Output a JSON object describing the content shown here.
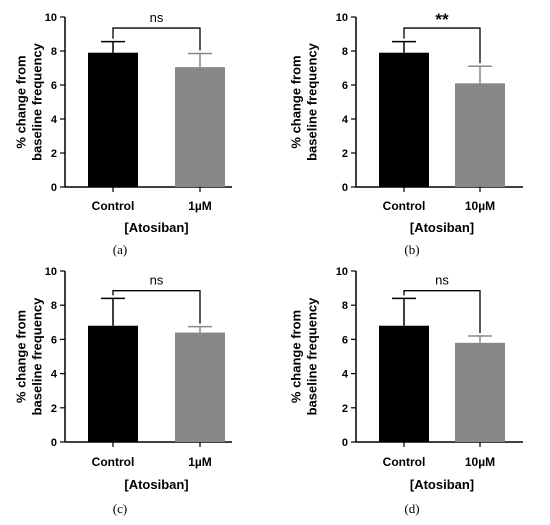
{
  "chart_data": [
    {
      "type": "bar",
      "panel": "(a)",
      "categories": [
        "Control",
        "1µM"
      ],
      "values": [
        7.9,
        7.05
      ],
      "errors": [
        0.65,
        0.8
      ],
      "colors": [
        "#000000",
        "#888888"
      ],
      "ylabel_lines": [
        "% change from",
        "baseline frequency"
      ],
      "xlabel": "[Atosiban]",
      "ylim": [
        0,
        10
      ],
      "yticks": [
        0,
        2,
        4,
        6,
        8,
        10
      ],
      "significance": "ns",
      "bracket_y": 9.35
    },
    {
      "type": "bar",
      "panel": "(b)",
      "categories": [
        "Control",
        "10µM"
      ],
      "values": [
        7.9,
        6.1
      ],
      "errors": [
        0.65,
        1.0
      ],
      "colors": [
        "#000000",
        "#888888"
      ],
      "ylabel_lines": [
        "% change from",
        "baseline frequency"
      ],
      "xlabel": "[Atosiban]",
      "ylim": [
        0,
        10
      ],
      "yticks": [
        0,
        2,
        4,
        6,
        8,
        10
      ],
      "significance": "**",
      "bracket_y": 9.35
    },
    {
      "type": "bar",
      "panel": "(c)",
      "categories": [
        "Control",
        "1µM"
      ],
      "values": [
        6.8,
        6.4
      ],
      "errors": [
        1.6,
        0.35
      ],
      "colors": [
        "#000000",
        "#888888"
      ],
      "ylabel_lines": [
        "% change from",
        "baseline frequency"
      ],
      "xlabel": "[Atosiban]",
      "ylim": [
        0,
        10
      ],
      "yticks": [
        0,
        2,
        4,
        6,
        8,
        10
      ],
      "significance": "ns",
      "bracket_y": 8.85
    },
    {
      "type": "bar",
      "panel": "(d)",
      "categories": [
        "Control",
        "10µM"
      ],
      "values": [
        6.8,
        5.8
      ],
      "errors": [
        1.6,
        0.4
      ],
      "colors": [
        "#000000",
        "#888888"
      ],
      "ylabel_lines": [
        "% change from",
        "baseline frequency"
      ],
      "xlabel": "[Atosiban]",
      "ylim": [
        0,
        10
      ],
      "yticks": [
        0,
        2,
        4,
        6,
        8,
        10
      ],
      "significance": "ns",
      "bracket_y": 8.85
    }
  ]
}
